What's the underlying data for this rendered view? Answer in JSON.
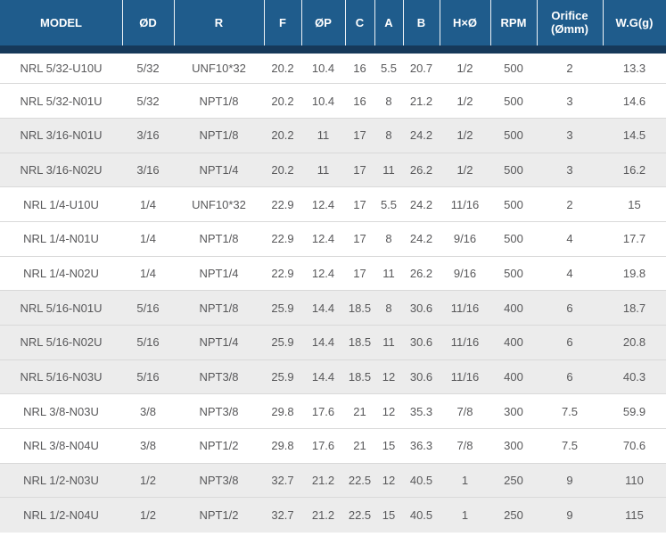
{
  "colors": {
    "header_bg": "#1F5C8C",
    "header_band": "#16395A",
    "header_text": "#FFFFFF",
    "row_alt_bg": "#ECECEC",
    "row_border": "#D9D9D9",
    "body_text": "#58585A",
    "page_bg": "#FFFFFF"
  },
  "spec_table": {
    "columns": [
      {
        "key": "model",
        "label": "MODEL"
      },
      {
        "key": "od",
        "label": "ØD"
      },
      {
        "key": "r",
        "label": "R"
      },
      {
        "key": "f",
        "label": "F"
      },
      {
        "key": "op",
        "label": "ØP"
      },
      {
        "key": "c",
        "label": "C"
      },
      {
        "key": "a",
        "label": "A"
      },
      {
        "key": "b",
        "label": "B"
      },
      {
        "key": "hxo",
        "label": "H×Ø"
      },
      {
        "key": "rpm",
        "label": "RPM"
      },
      {
        "key": "orifice",
        "label": "Orifice (Ømm)"
      },
      {
        "key": "wg",
        "label": "W.G(g)"
      }
    ],
    "rows": [
      {
        "group": 1,
        "model": "NRL 5/32-U10U",
        "od": "5/32",
        "r": "UNF10*32",
        "f": "20.2",
        "op": "10.4",
        "c": "16",
        "a": "5.5",
        "b": "20.7",
        "hxo": "1/2",
        "rpm": "500",
        "orifice": "2",
        "wg": "13.3"
      },
      {
        "group": 1,
        "model": "NRL 5/32-N01U",
        "od": "5/32",
        "r": "NPT1/8",
        "f": "20.2",
        "op": "10.4",
        "c": "16",
        "a": "8",
        "b": "21.2",
        "hxo": "1/2",
        "rpm": "500",
        "orifice": "3",
        "wg": "14.6"
      },
      {
        "group": 2,
        "model": "NRL 3/16-N01U",
        "od": "3/16",
        "r": "NPT1/8",
        "f": "20.2",
        "op": "11",
        "c": "17",
        "a": "8",
        "b": "24.2",
        "hxo": "1/2",
        "rpm": "500",
        "orifice": "3",
        "wg": "14.5"
      },
      {
        "group": 2,
        "model": "NRL 3/16-N02U",
        "od": "3/16",
        "r": "NPT1/4",
        "f": "20.2",
        "op": "11",
        "c": "17",
        "a": "11",
        "b": "26.2",
        "hxo": "1/2",
        "rpm": "500",
        "orifice": "3",
        "wg": "16.2"
      },
      {
        "group": 3,
        "model": "NRL 1/4-U10U",
        "od": "1/4",
        "r": "UNF10*32",
        "f": "22.9",
        "op": "12.4",
        "c": "17",
        "a": "5.5",
        "b": "24.2",
        "hxo": "11/16",
        "rpm": "500",
        "orifice": "2",
        "wg": "15"
      },
      {
        "group": 3,
        "model": "NRL 1/4-N01U",
        "od": "1/4",
        "r": "NPT1/8",
        "f": "22.9",
        "op": "12.4",
        "c": "17",
        "a": "8",
        "b": "24.2",
        "hxo": "9/16",
        "rpm": "500",
        "orifice": "4",
        "wg": "17.7"
      },
      {
        "group": 3,
        "model": "NRL 1/4-N02U",
        "od": "1/4",
        "r": "NPT1/4",
        "f": "22.9",
        "op": "12.4",
        "c": "17",
        "a": "11",
        "b": "26.2",
        "hxo": "9/16",
        "rpm": "500",
        "orifice": "4",
        "wg": "19.8"
      },
      {
        "group": 4,
        "model": "NRL 5/16-N01U",
        "od": "5/16",
        "r": "NPT1/8",
        "f": "25.9",
        "op": "14.4",
        "c": "18.5",
        "a": "8",
        "b": "30.6",
        "hxo": "11/16",
        "rpm": "400",
        "orifice": "6",
        "wg": "18.7"
      },
      {
        "group": 4,
        "model": "NRL 5/16-N02U",
        "od": "5/16",
        "r": "NPT1/4",
        "f": "25.9",
        "op": "14.4",
        "c": "18.5",
        "a": "11",
        "b": "30.6",
        "hxo": "11/16",
        "rpm": "400",
        "orifice": "6",
        "wg": "20.8"
      },
      {
        "group": 4,
        "model": "NRL 5/16-N03U",
        "od": "5/16",
        "r": "NPT3/8",
        "f": "25.9",
        "op": "14.4",
        "c": "18.5",
        "a": "12",
        "b": "30.6",
        "hxo": "11/16",
        "rpm": "400",
        "orifice": "6",
        "wg": "40.3"
      },
      {
        "group": 5,
        "model": "NRL 3/8-N03U",
        "od": "3/8",
        "r": "NPT3/8",
        "f": "29.8",
        "op": "17.6",
        "c": "21",
        "a": "12",
        "b": "35.3",
        "hxo": "7/8",
        "rpm": "300",
        "orifice": "7.5",
        "wg": "59.9"
      },
      {
        "group": 5,
        "model": "NRL 3/8-N04U",
        "od": "3/8",
        "r": "NPT1/2",
        "f": "29.8",
        "op": "17.6",
        "c": "21",
        "a": "15",
        "b": "36.3",
        "hxo": "7/8",
        "rpm": "300",
        "orifice": "7.5",
        "wg": "70.6"
      },
      {
        "group": 6,
        "model": "NRL 1/2-N03U",
        "od": "1/2",
        "r": "NPT3/8",
        "f": "32.7",
        "op": "21.2",
        "c": "22.5",
        "a": "12",
        "b": "40.5",
        "hxo": "1",
        "rpm": "250",
        "orifice": "9",
        "wg": "110"
      },
      {
        "group": 6,
        "model": "NRL 1/2-N04U",
        "od": "1/2",
        "r": "NPT1/2",
        "f": "32.7",
        "op": "21.2",
        "c": "22.5",
        "a": "15",
        "b": "40.5",
        "hxo": "1",
        "rpm": "250",
        "orifice": "9",
        "wg": "115"
      }
    ]
  }
}
